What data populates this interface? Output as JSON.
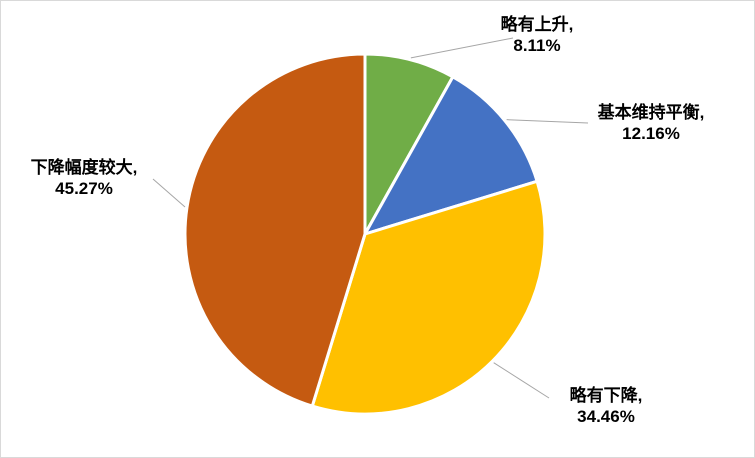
{
  "chart_data": {
    "type": "pie",
    "title": "",
    "slices": [
      {
        "name": "略有上升",
        "label": "略有上升,",
        "value": 8.11,
        "value_text": "8.11%",
        "color": "#70ad47"
      },
      {
        "name": "基本维持平衡",
        "label": "基本维持平衡,",
        "value": 12.16,
        "value_text": "12.16%",
        "color": "#4472c4"
      },
      {
        "name": "略有下降",
        "label": "略有下降,",
        "value": 34.46,
        "value_text": "34.46%",
        "color": "#ffc000"
      },
      {
        "name": "下降幅度较大",
        "label": "下降幅度较大,",
        "value": 45.27,
        "value_text": "45.27%",
        "color": "#c55a11"
      }
    ],
    "start_angle_deg": 0,
    "direction": "clockwise",
    "data_labels": "outside-with-leader-lines",
    "legend": "none"
  }
}
